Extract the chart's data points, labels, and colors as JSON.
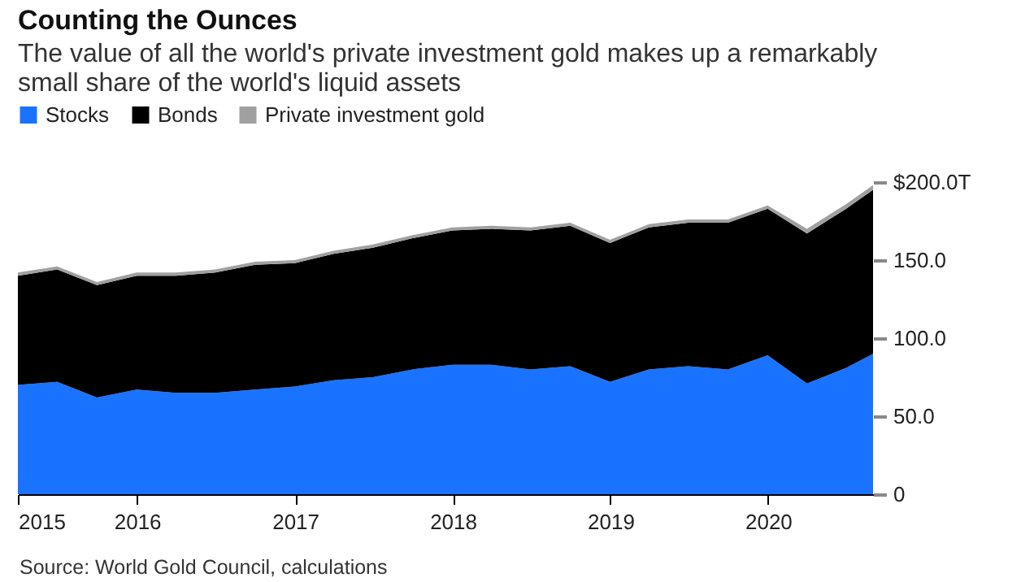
{
  "chart_data": {
    "type": "area",
    "title": "Counting the Ounces",
    "subtitle": "The value of all the world's private investment gold makes up a remarkably small share of the world's liquid assets",
    "x": [
      "2015-03-31",
      "2015-06-30",
      "2015-09-30",
      "2015-12-31",
      "2016-03-31",
      "2016-06-30",
      "2016-09-30",
      "2016-12-31",
      "2017-03-31",
      "2017-06-30",
      "2017-09-30",
      "2017-12-31",
      "2018-03-31",
      "2018-06-30",
      "2018-09-30",
      "2018-12-31",
      "2019-03-31",
      "2019-06-30",
      "2019-09-30",
      "2019-12-31",
      "2020-03-31",
      "2020-06-30",
      "2020-08-31"
    ],
    "stacked": true,
    "series": [
      {
        "name": "Stocks",
        "color": "#1a73ff",
        "values": [
          70,
          72,
          62,
          67,
          65,
          65,
          67,
          69,
          73,
          75,
          80,
          83,
          83,
          80,
          82,
          72,
          80,
          82,
          80,
          89,
          71,
          81,
          90
        ]
      },
      {
        "name": "Bonds",
        "color": "#000000",
        "values": [
          70,
          72,
          72,
          73,
          75,
          77,
          80,
          79,
          81,
          83,
          84,
          86,
          87,
          89,
          90,
          89,
          91,
          92,
          94,
          94,
          96,
          102,
          105
        ]
      },
      {
        "name": "Private investment gold",
        "color": "#a0a0a0",
        "values": [
          2,
          2,
          2,
          2,
          2,
          2,
          2,
          2,
          2,
          2,
          2,
          2,
          2,
          2,
          2,
          2,
          2,
          2,
          2,
          2,
          3,
          3,
          3
        ]
      }
    ],
    "xlim": [
      "2015-03-31",
      "2020-08-31"
    ],
    "xticks": [
      {
        "value": "2015-03-31",
        "label": "2015"
      },
      "2016",
      "2017",
      "2018",
      "2019",
      "2020"
    ],
    "ylim": [
      0,
      200
    ],
    "yticks": [
      {
        "value": 0,
        "label": "0"
      },
      {
        "value": 50,
        "label": "50.0"
      },
      {
        "value": 100,
        "label": "100.0"
      },
      {
        "value": 150,
        "label": "150.0"
      },
      {
        "value": 200,
        "label": "$200.0T"
      }
    ],
    "legend": "top left",
    "annotations": [
      "Source: World Gold Council, calculations"
    ]
  }
}
